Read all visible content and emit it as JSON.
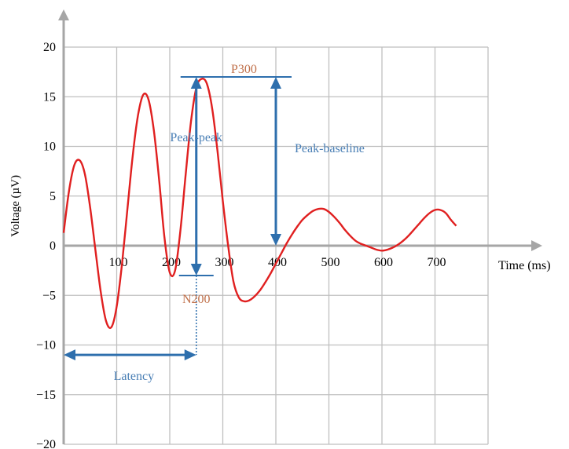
{
  "chart_data": {
    "type": "line",
    "title": "",
    "xlabel": "Time (ms)",
    "ylabel": "Voltage (µV)",
    "xlim": [
      0,
      800
    ],
    "ylim": [
      -20,
      20
    ],
    "x_ticks": [
      100,
      200,
      300,
      400,
      500,
      600,
      700
    ],
    "y_ticks": [
      20,
      15,
      10,
      5,
      0,
      -5,
      -10,
      -15,
      -20
    ],
    "y_tick_labels": [
      "20",
      "15",
      "10",
      "5",
      "0",
      "−5",
      "−10",
      "−15",
      "−20"
    ],
    "grid": true,
    "series": [
      {
        "color": "#e02020",
        "x": [
          0,
          10,
          20,
          30,
          40,
          50,
          60,
          70,
          80,
          90,
          100,
          110,
          120,
          130,
          140,
          150,
          160,
          170,
          180,
          190,
          200,
          210,
          220,
          230,
          240,
          250,
          260,
          270,
          280,
          290,
          300,
          310,
          320,
          330,
          340,
          350,
          360,
          370,
          380,
          390,
          400,
          410,
          420,
          430,
          440,
          450,
          460,
          470,
          480,
          490,
          500,
          510,
          520,
          530,
          540,
          550,
          560,
          570,
          580,
          590,
          600,
          610,
          620,
          630,
          640,
          650,
          660,
          670,
          680,
          690,
          700,
          710,
          720,
          730,
          740
        ],
        "values": [
          1.3,
          5.5,
          8.1,
          8.6,
          7.2,
          3.8,
          -0.5,
          -4.7,
          -7.6,
          -8.2,
          -6.1,
          -1.8,
          3.6,
          9.0,
          13.1,
          15.2,
          14.7,
          11.6,
          6.6,
          0.8,
          -2.7,
          -2.5,
          1.5,
          7.2,
          12.5,
          15.9,
          16.8,
          16.3,
          13.8,
          9.5,
          4.5,
          0.0,
          -3.6,
          -5.2,
          -5.6,
          -5.5,
          -5.1,
          -4.5,
          -3.7,
          -2.8,
          -1.8,
          -0.8,
          0.2,
          1.1,
          1.9,
          2.6,
          3.1,
          3.5,
          3.7,
          3.7,
          3.4,
          2.9,
          2.3,
          1.6,
          1.0,
          0.5,
          0.2,
          0.0,
          -0.2,
          -0.4,
          -0.5,
          -0.4,
          -0.2,
          0.1,
          0.5,
          1.0,
          1.6,
          2.2,
          2.8,
          3.3,
          3.6,
          3.6,
          3.3,
          2.6,
          2.0
        ]
      }
    ],
    "annotations": {
      "p300": {
        "label": "P300",
        "y": 17
      },
      "n200": {
        "label": "N200",
        "y": -3
      },
      "peak_peak": {
        "label": "Peak-peak",
        "x": 250,
        "y_top": 17,
        "y_bottom": -3
      },
      "peak_baseline": {
        "label": "Peak-baseline",
        "x": 400,
        "y_top": 17,
        "y_bottom": 0
      },
      "latency": {
        "label": "Latency",
        "x_start": 0,
        "x_end": 250,
        "y": -11
      }
    },
    "colors": {
      "curve": "#e02020",
      "annotation_line": "#2e6fad",
      "annotation_text": "#4a7fb5",
      "peak_label": "#c0704a",
      "axis": "#a6a6a6",
      "grid": "#bfbfbf"
    }
  }
}
